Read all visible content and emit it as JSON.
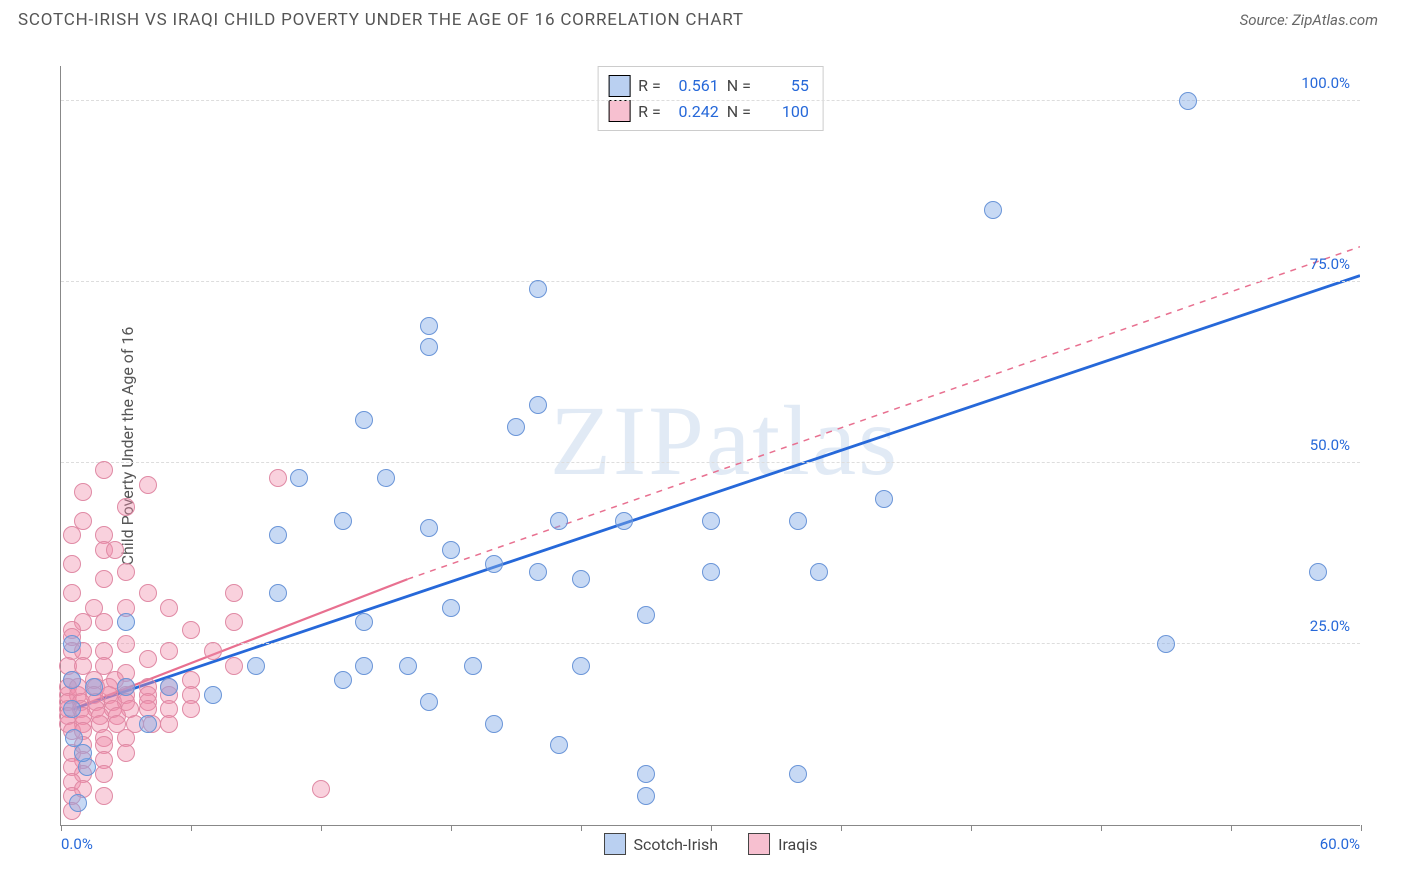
{
  "header": {
    "title": "SCOTCH-IRISH VS IRAQI CHILD POVERTY UNDER THE AGE OF 16 CORRELATION CHART",
    "source": "Source: ZipAtlas.com"
  },
  "axes": {
    "ylabel": "Child Poverty Under the Age of 16",
    "xlim": [
      0,
      60
    ],
    "ylim": [
      0,
      105
    ],
    "ytick_values": [
      25,
      50,
      75,
      100
    ],
    "ytick_labels": [
      "25.0%",
      "50.0%",
      "75.0%",
      "100.0%"
    ],
    "xtick_values": [
      0,
      6,
      12,
      18,
      24,
      30,
      36,
      42,
      48,
      54,
      60
    ],
    "xtick_labels_left": "0.0%",
    "xtick_labels_right": "60.0%",
    "grid_color": "#dddddd",
    "axis_color": "#888888",
    "label_color": "#2668d9",
    "label_fontsize": 15
  },
  "watermark": "ZIPatlas",
  "series_a": {
    "name": "Scotch-Irish",
    "color_fill": "rgba(130,170,230,0.45)",
    "color_stroke": "#6a95d8",
    "trend_color": "#2668d9",
    "trend_dash": "none",
    "trend_p1": [
      0.5,
      16
    ],
    "trend_p2": [
      60,
      76
    ],
    "R": "0.561",
    "N": "55",
    "points": [
      [
        52,
        100
      ],
      [
        43,
        85
      ],
      [
        22,
        74
      ],
      [
        17,
        69
      ],
      [
        17,
        66
      ],
      [
        22,
        58
      ],
      [
        21,
        55
      ],
      [
        14,
        56
      ],
      [
        15,
        48
      ],
      [
        11,
        48
      ],
      [
        10,
        40
      ],
      [
        23,
        42
      ],
      [
        26,
        42
      ],
      [
        30,
        42
      ],
      [
        34,
        42
      ],
      [
        38,
        45
      ],
      [
        13,
        42
      ],
      [
        17,
        41
      ],
      [
        18,
        38
      ],
      [
        20,
        36
      ],
      [
        22,
        35
      ],
      [
        24,
        34
      ],
      [
        30,
        35
      ],
      [
        35,
        35
      ],
      [
        27,
        29
      ],
      [
        10,
        32
      ],
      [
        3,
        28
      ],
      [
        0.5,
        25
      ],
      [
        58,
        35
      ],
      [
        18,
        30
      ],
      [
        14,
        28
      ],
      [
        9,
        22
      ],
      [
        14,
        22
      ],
      [
        51,
        25
      ],
      [
        16,
        22
      ],
      [
        19,
        22
      ],
      [
        24,
        22
      ],
      [
        0.5,
        20
      ],
      [
        1.5,
        19
      ],
      [
        3,
        19
      ],
      [
        5,
        19
      ],
      [
        7,
        18
      ],
      [
        4,
        14
      ],
      [
        0.5,
        16
      ],
      [
        13,
        20
      ],
      [
        17,
        17
      ],
      [
        20,
        14
      ],
      [
        23,
        11
      ],
      [
        27,
        7
      ],
      [
        34,
        7
      ],
      [
        27,
        4
      ],
      [
        0.8,
        3
      ],
      [
        1.2,
        8
      ],
      [
        1.0,
        10
      ],
      [
        0.6,
        12
      ]
    ]
  },
  "series_b": {
    "name": "Iraqis",
    "color_fill": "rgba(240,140,170,0.40)",
    "color_stroke": "#e08aa5",
    "trend_color": "#e87090",
    "trend_solid_p1": [
      0.5,
      16
    ],
    "trend_solid_p2": [
      16,
      34
    ],
    "trend_dash_p1": [
      16,
      34
    ],
    "trend_dash_p2": [
      60,
      80
    ],
    "R": "0.242",
    "N": "100",
    "points": [
      [
        2,
        49
      ],
      [
        4,
        47
      ],
      [
        1,
        46
      ],
      [
        10,
        48
      ],
      [
        3,
        44
      ],
      [
        1,
        42
      ],
      [
        2,
        40
      ],
      [
        0.5,
        40
      ],
      [
        2,
        38
      ],
      [
        2.5,
        38
      ],
      [
        0.5,
        36
      ],
      [
        3,
        35
      ],
      [
        2,
        34
      ],
      [
        4,
        32
      ],
      [
        5,
        30
      ],
      [
        8,
        32
      ],
      [
        0.5,
        32
      ],
      [
        1.5,
        30
      ],
      [
        3,
        30
      ],
      [
        2,
        28
      ],
      [
        1,
        28
      ],
      [
        6,
        27
      ],
      [
        8,
        28
      ],
      [
        0.5,
        27
      ],
      [
        0.5,
        26
      ],
      [
        0.5,
        24
      ],
      [
        1,
        24
      ],
      [
        2,
        24
      ],
      [
        3,
        25
      ],
      [
        4,
        23
      ],
      [
        5,
        24
      ],
      [
        7,
        24
      ],
      [
        8,
        22
      ],
      [
        6,
        20
      ],
      [
        0.3,
        22
      ],
      [
        1,
        22
      ],
      [
        2,
        22
      ],
      [
        3,
        21
      ],
      [
        0.5,
        20
      ],
      [
        1.5,
        20
      ],
      [
        2.5,
        20
      ],
      [
        0.3,
        19
      ],
      [
        0.8,
        19
      ],
      [
        1.6,
        19
      ],
      [
        2.2,
        19
      ],
      [
        3,
        19
      ],
      [
        4,
        19
      ],
      [
        5,
        19
      ],
      [
        0.3,
        18
      ],
      [
        0.8,
        18
      ],
      [
        1.5,
        18
      ],
      [
        2.2,
        18
      ],
      [
        3,
        18
      ],
      [
        4,
        18
      ],
      [
        5,
        18
      ],
      [
        6,
        18
      ],
      [
        0.3,
        17
      ],
      [
        0.9,
        17
      ],
      [
        1.6,
        17
      ],
      [
        2.4,
        17
      ],
      [
        3,
        17
      ],
      [
        4,
        17
      ],
      [
        0.3,
        16
      ],
      [
        0.9,
        16
      ],
      [
        1.6,
        16
      ],
      [
        2.4,
        16
      ],
      [
        3.2,
        16
      ],
      [
        4,
        16
      ],
      [
        5,
        16
      ],
      [
        6,
        16
      ],
      [
        0.3,
        15
      ],
      [
        1,
        15
      ],
      [
        1.8,
        15
      ],
      [
        2.6,
        15
      ],
      [
        0.3,
        14
      ],
      [
        1,
        14
      ],
      [
        1.8,
        14
      ],
      [
        2.6,
        14
      ],
      [
        3.4,
        14
      ],
      [
        4.2,
        14
      ],
      [
        5,
        14
      ],
      [
        0.5,
        13
      ],
      [
        1,
        13
      ],
      [
        2,
        12
      ],
      [
        3,
        12
      ],
      [
        1,
        11
      ],
      [
        2,
        11
      ],
      [
        3,
        10
      ],
      [
        0.5,
        10
      ],
      [
        1,
        9
      ],
      [
        2,
        9
      ],
      [
        0.5,
        8
      ],
      [
        1,
        7
      ],
      [
        2,
        7
      ],
      [
        0.5,
        6
      ],
      [
        1,
        5
      ],
      [
        2,
        4
      ],
      [
        0.5,
        4
      ],
      [
        12,
        5
      ],
      [
        0.5,
        2
      ]
    ]
  },
  "legend_top": {
    "r_label": "R =",
    "n_label": "N ="
  },
  "legend_bottom": {
    "a": "Scotch-Irish",
    "b": "Iraqis"
  }
}
